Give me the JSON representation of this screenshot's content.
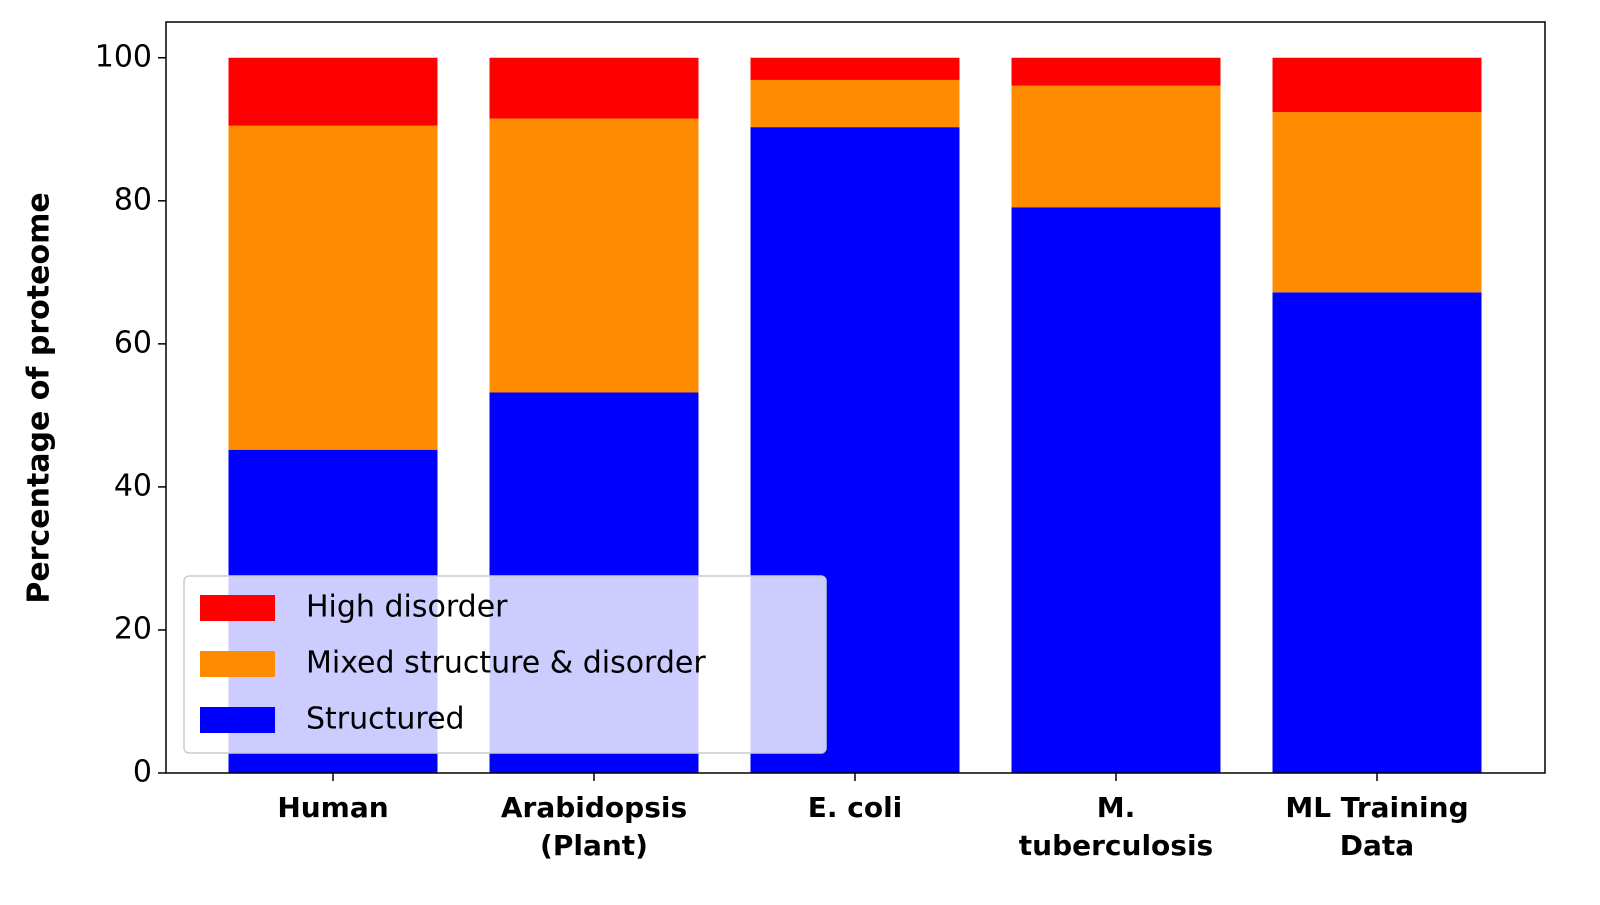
{
  "chart_data": {
    "type": "stacked_bar",
    "categories": [
      "Human",
      "Arabidopsis\n(Plant)",
      "E. coli",
      "M.\ntuberculosis",
      "ML Training\nData"
    ],
    "series": [
      {
        "name": "Structured",
        "color": "#0000ff",
        "values": [
          45.2,
          53.2,
          90.3,
          79.1,
          67.2
        ]
      },
      {
        "name": "Mixed structure & disorder",
        "color": "#ff8c00",
        "values": [
          45.3,
          38.3,
          6.6,
          17.0,
          25.2
        ]
      },
      {
        "name": "High disorder",
        "color": "#ff0000",
        "values": [
          9.5,
          8.5,
          3.1,
          3.9,
          7.6
        ]
      }
    ],
    "y_label": "Percentage of proteome",
    "ylim": [
      0,
      105
    ],
    "yticks": [
      0,
      20,
      40,
      60,
      80,
      100
    ],
    "legend": "lower left"
  }
}
